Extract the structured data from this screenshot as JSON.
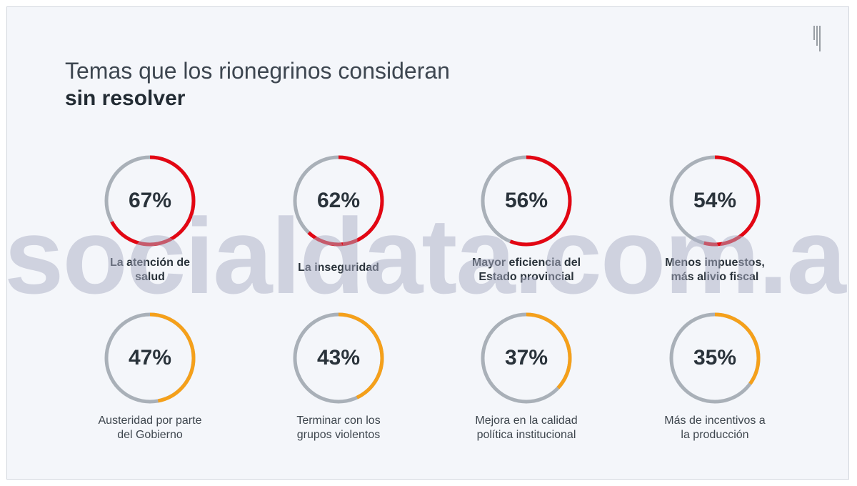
{
  "title": {
    "line1": "Temas que los rionegrinos consideran",
    "line2": "sin resolver"
  },
  "watermark": "socialdata.com.ar",
  "colors": {
    "track": "#a9b0b8",
    "high": "#e30613",
    "mid": "#f5a01a",
    "background": "#f4f6fa"
  },
  "chart_data": {
    "type": "donut",
    "title": "Temas que los rionegrinos consideran sin resolver",
    "unit": "%",
    "items": [
      {
        "label": "La atención de salud",
        "label_lines": [
          "La atención de",
          "salud"
        ],
        "value": 67,
        "display": "67%",
        "color": "#e30613"
      },
      {
        "label": "La inseguridad",
        "label_lines": [
          "La inseguridad"
        ],
        "value": 62,
        "display": "62%",
        "color": "#e30613"
      },
      {
        "label": "Mayor eficiencia del Estado provincial",
        "label_lines": [
          "Mayor eficiencia del",
          "Estado provincial"
        ],
        "value": 56,
        "display": "56%",
        "color": "#e30613"
      },
      {
        "label": "Menos impuestos, más alivio fiscal",
        "label_lines": [
          "Menos impuestos,",
          "más alivio fiscal"
        ],
        "value": 54,
        "display": "54%",
        "color": "#e30613"
      },
      {
        "label": "Austeridad por parte del Gobierno",
        "label_lines": [
          "Austeridad por parte",
          "del Gobierno"
        ],
        "value": 47,
        "display": "47%",
        "color": "#f5a01a"
      },
      {
        "label": "Terminar con los grupos violentos",
        "label_lines": [
          "Terminar con los",
          "grupos violentos"
        ],
        "value": 43,
        "display": "43%",
        "color": "#f5a01a"
      },
      {
        "label": "Mejora en la calidad política institucional",
        "label_lines": [
          "Mejora en la calidad",
          "política institucional"
        ],
        "value": 37,
        "display": "37%",
        "color": "#f5a01a"
      },
      {
        "label": "Más de incentivos a la producción",
        "label_lines": [
          "Más de incentivos a",
          "la producción"
        ],
        "value": 35,
        "display": "35%",
        "color": "#f5a01a"
      }
    ]
  }
}
